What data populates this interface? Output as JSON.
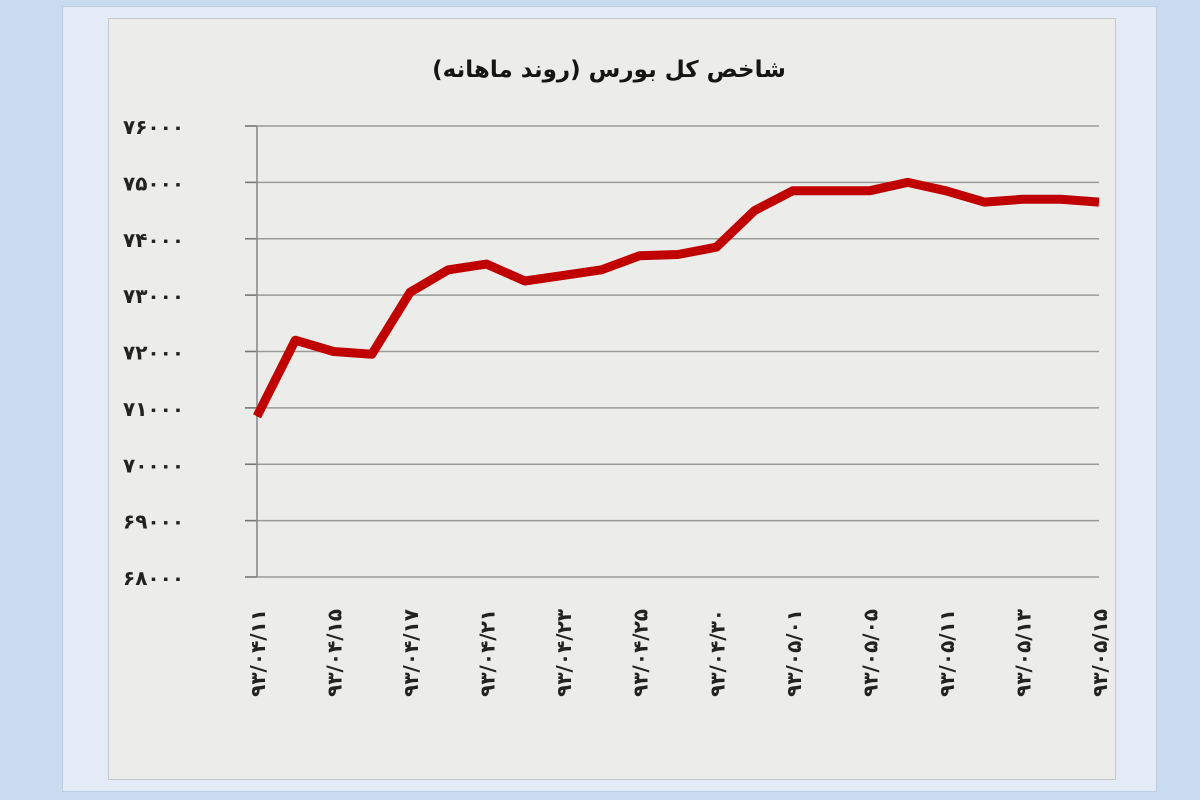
{
  "chart_data": {
    "type": "line",
    "title": "شاخص کل بورس (روند ماهانه)",
    "xlabel": "",
    "ylabel": "",
    "ylim": [
      68000,
      76000
    ],
    "y_ticks": [
      68000,
      69000,
      70000,
      71000,
      72000,
      73000,
      74000,
      75000,
      76000
    ],
    "y_tick_labels": [
      "۶۸۰۰۰",
      "۶۹۰۰۰",
      "۷۰۰۰۰",
      "۷۱۰۰۰",
      "۷۲۰۰۰",
      "۷۳۰۰۰",
      "۷۴۰۰۰",
      "۷۵۰۰۰",
      "۷۶۰۰۰"
    ],
    "x_tick_labels": [
      "۹۳/۰۴/۱۱",
      "۹۳/۰۴/۱۵",
      "۹۳/۰۴/۱۷",
      "۹۳/۰۴/۲۱",
      "۹۳/۰۴/۲۳",
      "۹۳/۰۴/۲۵",
      "۹۳/۰۴/۳۰",
      "۹۳/۰۵/۰۱",
      "۹۳/۰۵/۰۵",
      "۹۳/۰۵/۱۱",
      "۹۳/۰۵/۱۳",
      "۹۳/۰۵/۱۵"
    ],
    "x_tick_index": [
      0,
      2,
      4,
      6,
      8,
      10,
      12,
      14,
      16,
      18,
      20,
      22
    ],
    "grid": true,
    "legend": "none",
    "series": [
      {
        "values": [
          70850,
          72200,
          72000,
          71950,
          73050,
          73450,
          73550,
          73250,
          73350,
          73450,
          73700,
          73720,
          73850,
          74500,
          74850,
          74850,
          74850,
          75000,
          74850,
          74650,
          74700,
          74700,
          74650
        ],
        "color": "#c00000"
      }
    ]
  }
}
